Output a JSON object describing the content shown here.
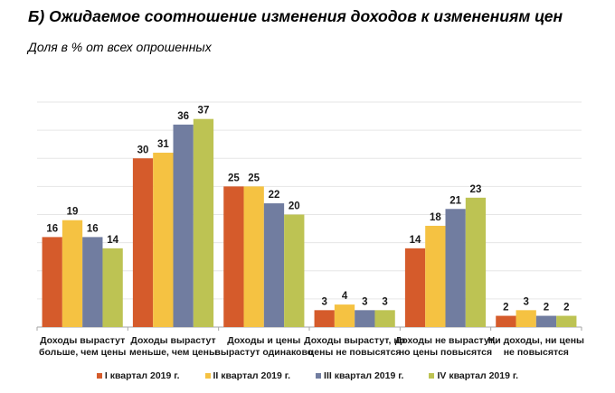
{
  "chart_data": {
    "type": "bar",
    "title": "Б) Ожидаемое соотношение изменения доходов к изменениям цен",
    "subtitle": "Доля в % от всех опрошенных",
    "xlabel": "",
    "ylabel": "",
    "ylim": [
      0,
      40
    ],
    "ytick_step": 5,
    "grid": true,
    "y_axis_labels_shown": false,
    "legend_position": "bottom",
    "categories": [
      [
        "Доходы вырастут",
        "больше, чем цены"
      ],
      [
        "Доходы вырастут",
        "меньше, чем цены"
      ],
      [
        "Доходы и цены",
        "вырастут одинаково"
      ],
      [
        "Доходы вырастут, но",
        "цены не повысятся"
      ],
      [
        "Доходы не вырастут,",
        "но цены повысятся"
      ],
      [
        "Ни доходы, ни цены",
        "не повысятся"
      ]
    ],
    "series": [
      {
        "name": "I квартал 2019 г.",
        "color": "#D55B2B",
        "values": [
          16,
          30,
          25,
          3,
          14,
          2
        ]
      },
      {
        "name": "II квартал 2019 г.",
        "color": "#F5C242",
        "values": [
          19,
          31,
          25,
          4,
          18,
          3
        ]
      },
      {
        "name": "III квартал 2019 г.",
        "color": "#717DA0",
        "values": [
          16,
          36,
          22,
          3,
          21,
          2
        ]
      },
      {
        "name": "IV квартал 2019 г.",
        "color": "#BDC353",
        "values": [
          14,
          37,
          20,
          3,
          23,
          2
        ]
      }
    ]
  }
}
